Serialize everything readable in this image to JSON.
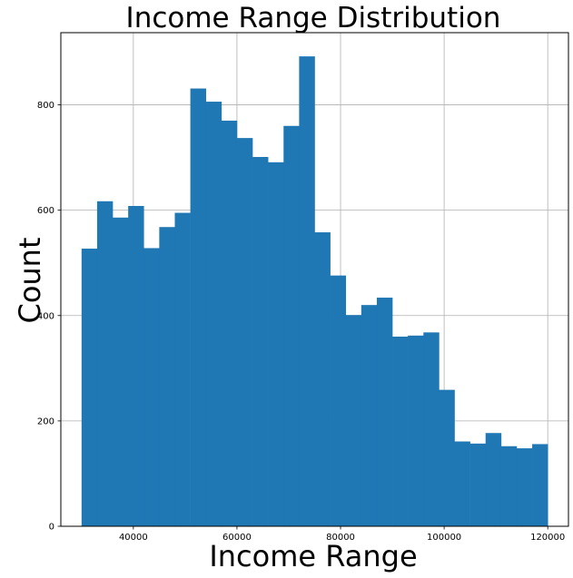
{
  "chart_data": {
    "type": "bar",
    "title": "Income Range Distribution",
    "xlabel": "Income Range",
    "ylabel": "Count",
    "grid": true,
    "bar_color": "#1f77b4",
    "grid_color": "#b0b0b0",
    "xlim": [
      26000,
      124000
    ],
    "ylim": [
      0,
      937
    ],
    "xticks": [
      40000,
      60000,
      80000,
      100000,
      120000
    ],
    "yticks": [
      0,
      200,
      400,
      600,
      800
    ],
    "bin_start": 30000,
    "bin_width": 3000,
    "values": [
      527,
      617,
      586,
      608,
      528,
      568,
      595,
      831,
      806,
      770,
      737,
      701,
      691,
      760,
      892,
      558,
      476,
      401,
      420,
      434,
      360,
      362,
      368,
      259,
      161,
      157,
      177,
      152,
      148,
      156
    ]
  }
}
